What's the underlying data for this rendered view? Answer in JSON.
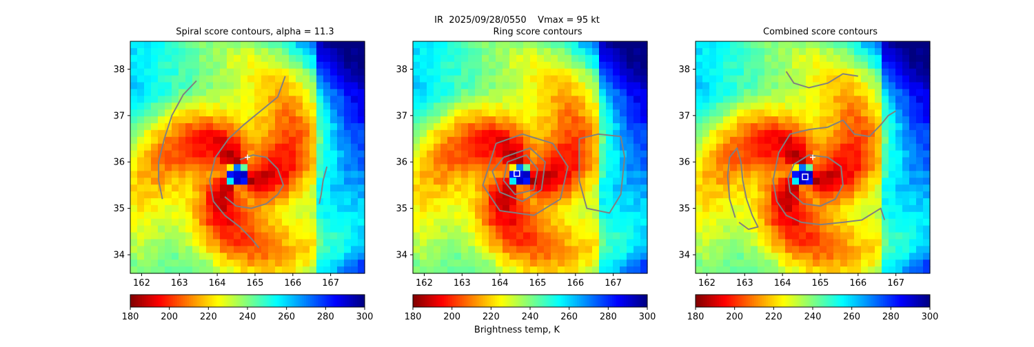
{
  "figure": {
    "suptitle": "IR  2025/09/28/0550    Vmax = 95 kt",
    "colorbar_label": "Brightness temp, K"
  },
  "chart_data": [
    {
      "type": "heatmap",
      "title": "Spiral score contours, alpha = 11.3",
      "x_ticks": [
        162,
        163,
        164,
        165,
        166,
        167
      ],
      "y_ticks": [
        34,
        35,
        36,
        37,
        38
      ],
      "xlim": [
        161.7,
        167.9
      ],
      "ylim": [
        33.6,
        38.6
      ],
      "colorbar": {
        "ticks": [
          180,
          200,
          220,
          240,
          260,
          280,
          300
        ],
        "range": [
          180,
          300
        ],
        "colormap": "jet_r"
      },
      "eye_center": [
        164.55,
        35.7
      ],
      "markers": [
        {
          "symbol": "+",
          "color": "#ffffff",
          "lon": 164.8,
          "lat": 36.1
        }
      ],
      "contour_color": "#808080"
    },
    {
      "type": "heatmap",
      "title": "Ring score contours",
      "x_ticks": [
        162,
        163,
        164,
        165,
        166,
        167
      ],
      "y_ticks": [
        34,
        35,
        36,
        37,
        38
      ],
      "xlim": [
        161.7,
        167.9
      ],
      "ylim": [
        33.6,
        38.6
      ],
      "colorbar": {
        "ticks": [
          180,
          200,
          220,
          240,
          260,
          280,
          300
        ],
        "range": [
          180,
          300
        ],
        "colormap": "jet_r"
      },
      "eye_center": [
        164.55,
        35.7
      ],
      "markers": [
        {
          "symbol": "square",
          "color": "#ffffff",
          "lon": 164.45,
          "lat": 35.75
        }
      ],
      "contour_color": "#808080"
    },
    {
      "type": "heatmap",
      "title": "Combined score contours",
      "x_ticks": [
        162,
        163,
        164,
        165,
        166,
        167
      ],
      "y_ticks": [
        34,
        35,
        36,
        37,
        38
      ],
      "xlim": [
        161.7,
        167.9
      ],
      "ylim": [
        33.6,
        38.6
      ],
      "colorbar": {
        "ticks": [
          180,
          200,
          220,
          240,
          260,
          280,
          300
        ],
        "range": [
          180,
          300
        ],
        "colormap": "jet_r"
      },
      "eye_center": [
        164.55,
        35.7
      ],
      "markers": [
        {
          "symbol": "+",
          "color": "#ffffff",
          "lon": 164.8,
          "lat": 36.1
        },
        {
          "symbol": "square",
          "color": "#ffffff",
          "lon": 164.6,
          "lat": 35.68
        }
      ],
      "contour_color": "#808080"
    }
  ]
}
